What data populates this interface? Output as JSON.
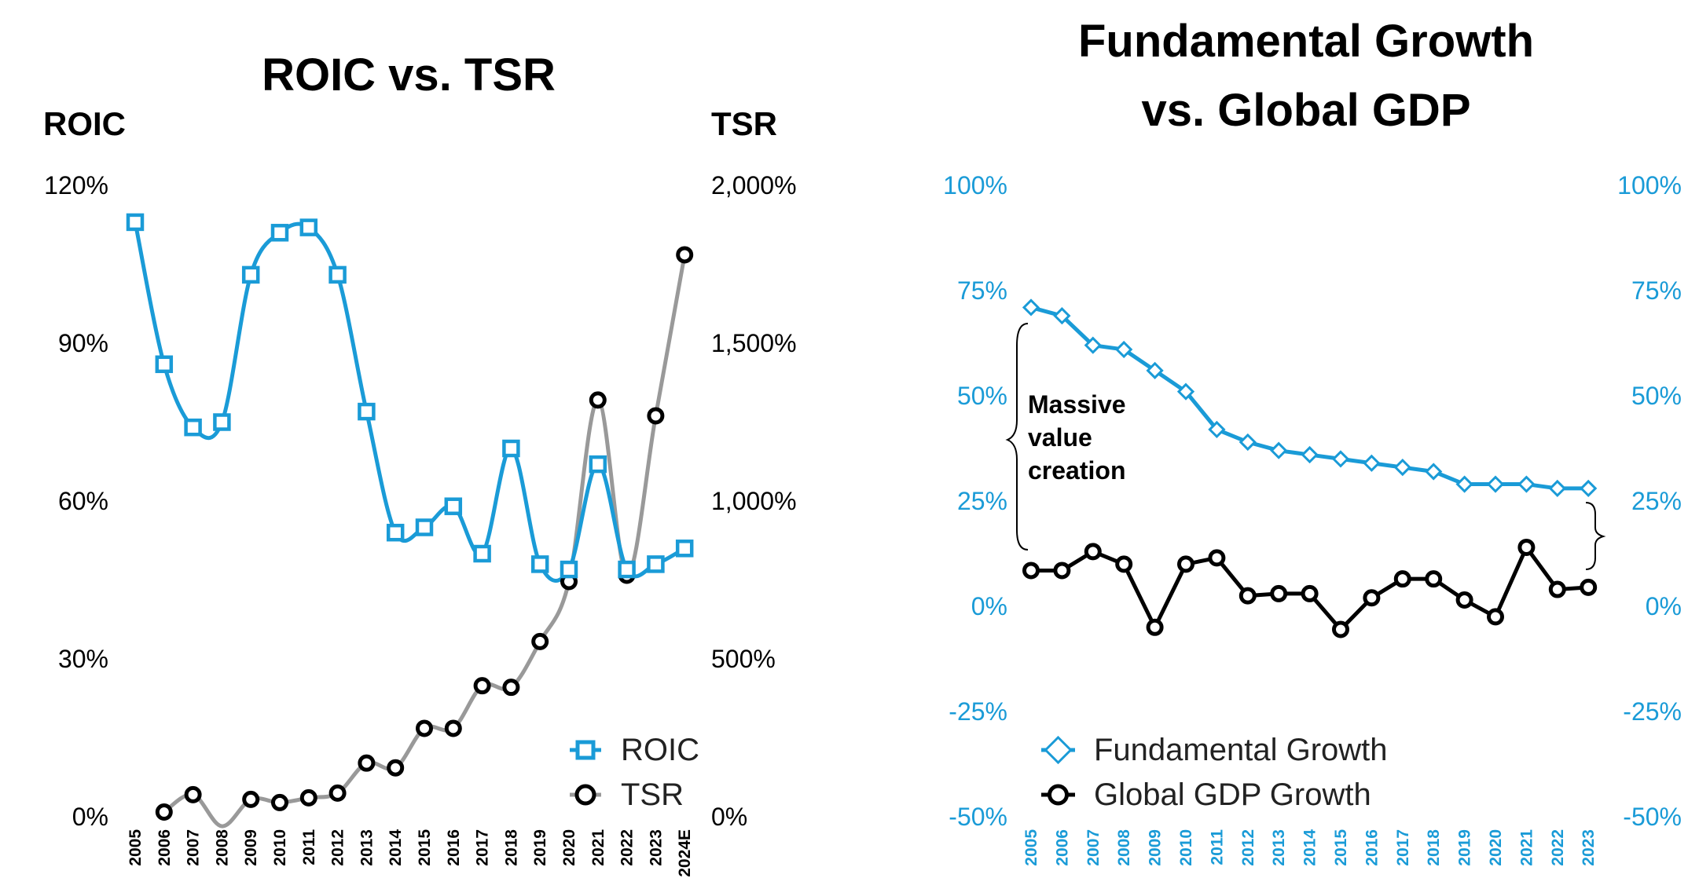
{
  "colors": {
    "roic": "#1a9bd7",
    "tsr_marker": "#000000",
    "tsr_line": "#999999",
    "fundamental": "#1a9bd7",
    "gdp": "#000000"
  },
  "chart_data": [
    {
      "type": "line",
      "title": "ROIC vs. TSR",
      "ylabel_left": "ROIC",
      "ylabel_right": "TSR",
      "categories": [
        "2005",
        "2006",
        "2007",
        "2008",
        "2009",
        "2010",
        "2011",
        "2012",
        "2013",
        "2014",
        "2015",
        "2016",
        "2017",
        "2018",
        "2019",
        "2020",
        "2021",
        "2022",
        "2023",
        "2024E"
      ],
      "left_axis": {
        "ylim": [
          0,
          120
        ],
        "ticks": [
          "0%",
          "30%",
          "60%",
          "90%",
          "120%"
        ]
      },
      "right_axis": {
        "ylim": [
          0,
          2000
        ],
        "ticks": [
          "0%",
          "500%",
          "1,000%",
          "1,500%",
          "2,000%"
        ]
      },
      "series": [
        {
          "name": "ROIC",
          "axis": "left",
          "marker": "square",
          "values": [
            113,
            86,
            74,
            75,
            103,
            111,
            112,
            103,
            77,
            54,
            55,
            59,
            50,
            70,
            48,
            47,
            67,
            47,
            48,
            51
          ]
        },
        {
          "name": "TSR",
          "axis": "right",
          "marker": "circle",
          "values": [
            null,
            15,
            70,
            -30,
            55,
            45,
            60,
            75,
            170,
            155,
            280,
            280,
            415,
            410,
            555,
            745,
            1320,
            765,
            1270,
            1780
          ]
        }
      ],
      "legend": "bottom-right",
      "grid": false
    },
    {
      "type": "line",
      "title_line1": "Fundamental Growth",
      "title_line2": "vs. Global GDP",
      "categories": [
        "2005",
        "2006",
        "2007",
        "2008",
        "2009",
        "2010",
        "2011",
        "2012",
        "2013",
        "2014",
        "2015",
        "2016",
        "2017",
        "2018",
        "2019",
        "2020",
        "2021",
        "2022",
        "2023"
      ],
      "left_axis": {
        "ylim": [
          -50,
          100
        ],
        "ticks": [
          "-50%",
          "-25%",
          "0%",
          "25%",
          "50%",
          "75%",
          "100%"
        ]
      },
      "right_axis": {
        "ylim": [
          -50,
          100
        ],
        "ticks": [
          "-50%",
          "-25%",
          "0%",
          "25%",
          "50%",
          "75%",
          "100%"
        ]
      },
      "series": [
        {
          "name": "Fundamental Growth",
          "marker": "diamond",
          "values": [
            71,
            69,
            62,
            61,
            56,
            51,
            42,
            39,
            37,
            36,
            35,
            34,
            33,
            32,
            29,
            29,
            29,
            28,
            28
          ]
        },
        {
          "name": "Global GDP Growth",
          "marker": "circle",
          "values": [
            8.5,
            8.5,
            13,
            10,
            -5,
            10,
            11.5,
            2.5,
            3,
            3,
            -5.5,
            2,
            6.5,
            6.5,
            1.5,
            -2.5,
            14,
            4,
            4.5
          ]
        }
      ],
      "annotation": [
        "Massive",
        "value",
        "creation"
      ],
      "legend": "bottom-left",
      "grid": false
    }
  ]
}
